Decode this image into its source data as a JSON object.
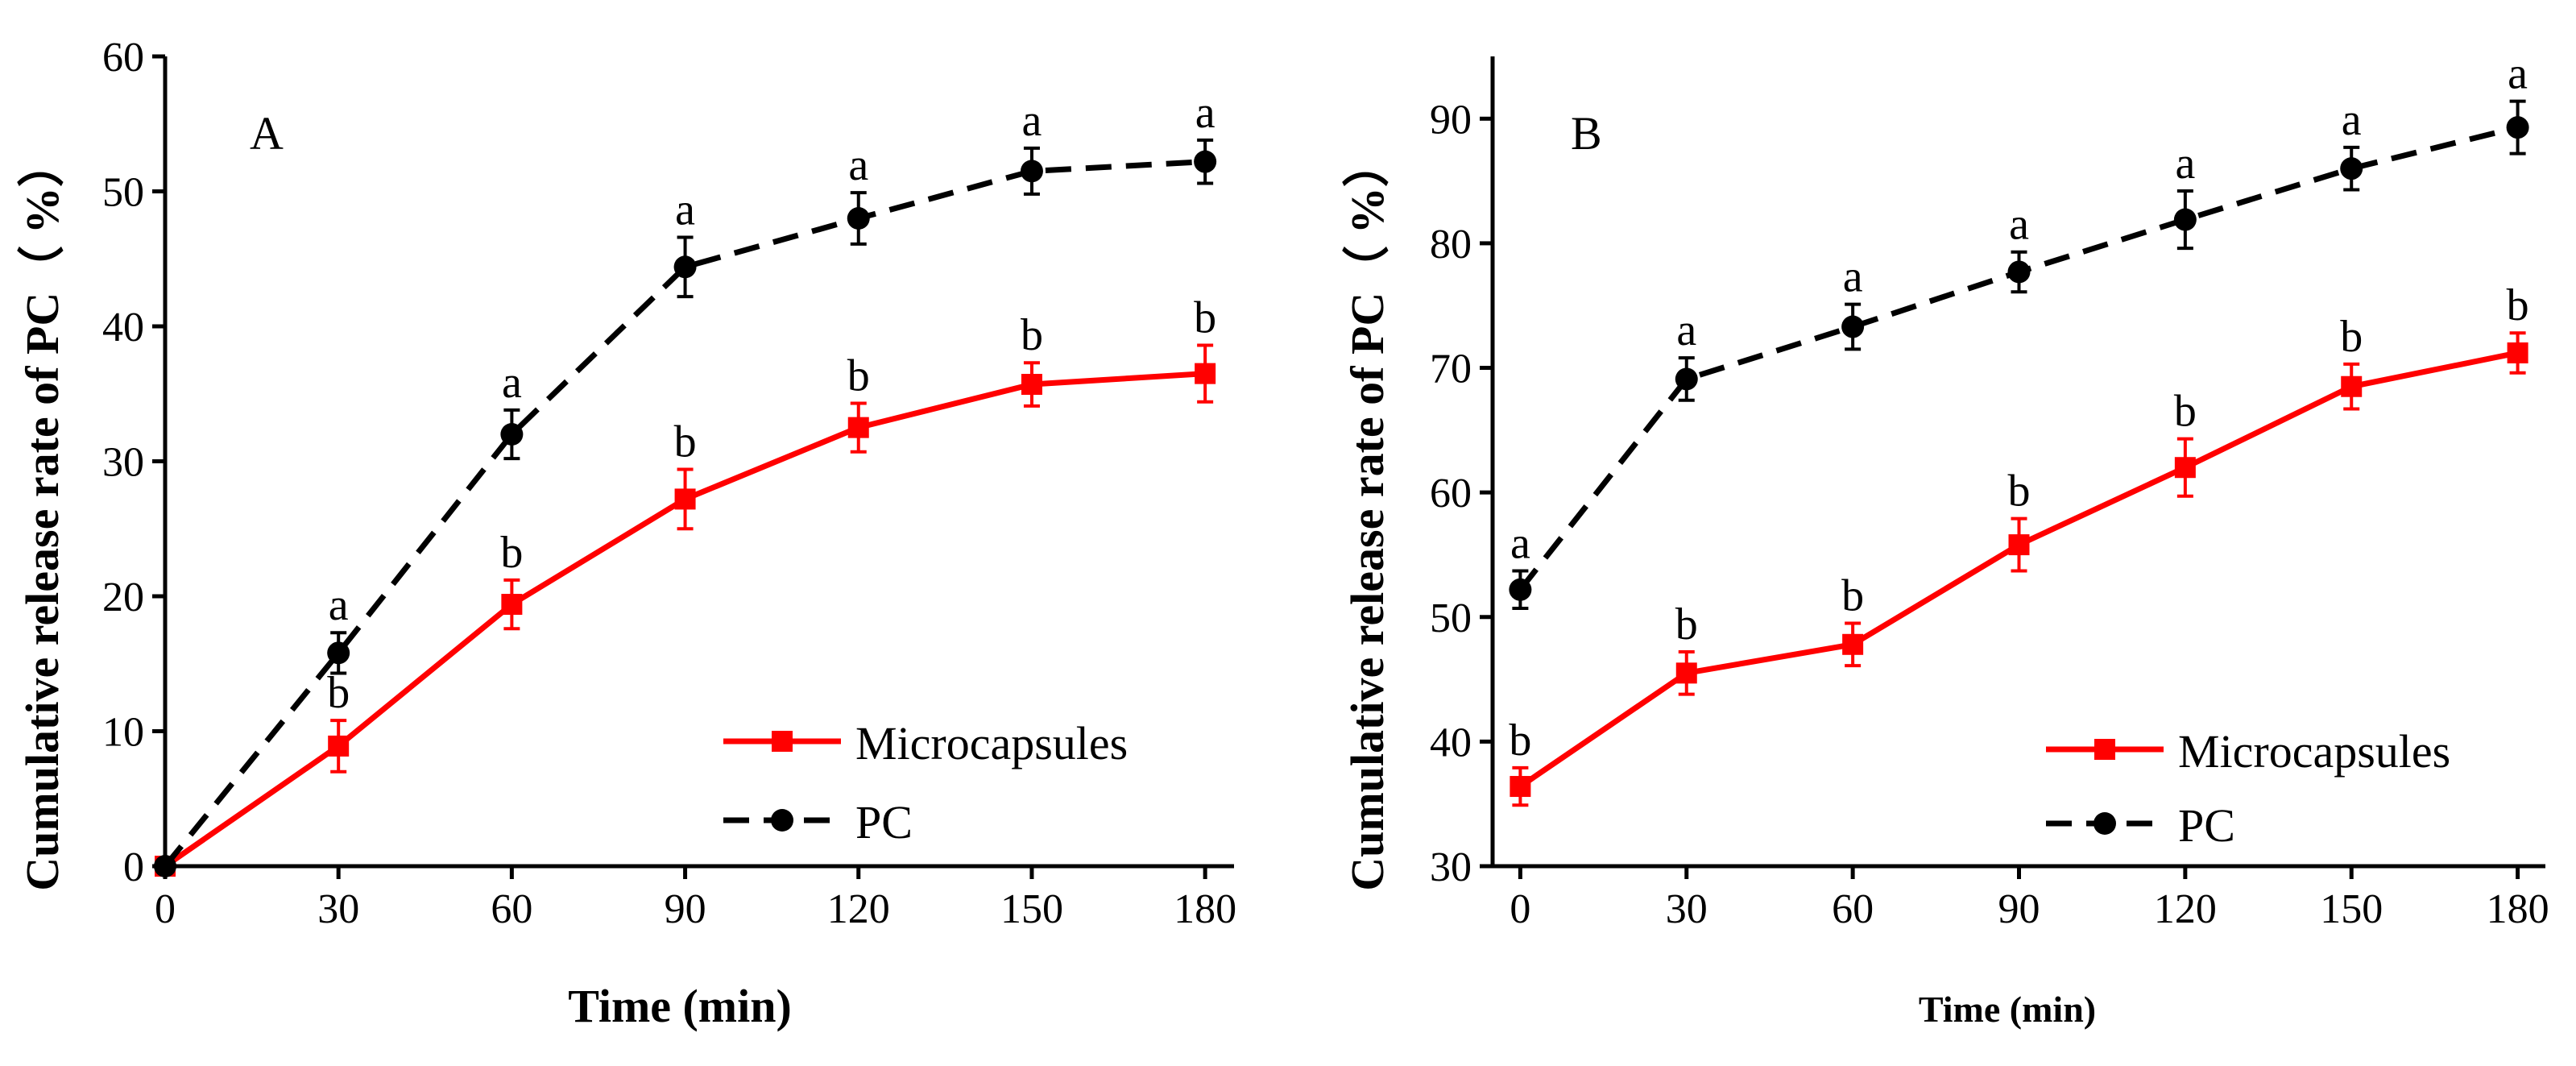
{
  "chart_data": [
    {
      "type": "line",
      "panel_label": "A",
      "xlabel": "Time (min)",
      "ylabel": "Cumulative release rate of PC（ %）",
      "xlim": [
        0,
        185
      ],
      "ylim": [
        0,
        60
      ],
      "xticks": [
        0,
        30,
        60,
        90,
        120,
        150,
        180
      ],
      "yticks": [
        0,
        10,
        20,
        30,
        40,
        50,
        60
      ],
      "legend_position": "bottom-right",
      "series": [
        {
          "name": "Microcapsules",
          "color": "#ff0000",
          "line_style": "solid",
          "marker": "square",
          "x": [
            0,
            30,
            60,
            90,
            120,
            150,
            180
          ],
          "y": [
            0,
            8.9,
            19.4,
            27.2,
            32.5,
            35.7,
            36.5
          ],
          "err": [
            0,
            1.9,
            1.8,
            2.2,
            1.8,
            1.6,
            2.1
          ],
          "letters": [
            "",
            "b",
            "b",
            "b",
            "b",
            "b",
            "b"
          ]
        },
        {
          "name": "PC",
          "color": "#000000",
          "line_style": "dashed",
          "marker": "circle",
          "x": [
            0,
            30,
            60,
            90,
            120,
            150,
            180
          ],
          "y": [
            0,
            15.8,
            32.0,
            44.4,
            48.0,
            51.5,
            52.2
          ],
          "err": [
            0,
            1.5,
            1.8,
            2.2,
            1.9,
            1.7,
            1.6
          ],
          "letters": [
            "",
            "a",
            "a",
            "a",
            "a",
            "a",
            "a"
          ]
        }
      ]
    },
    {
      "type": "line",
      "panel_label": "B",
      "xlabel": "Time (min)",
      "ylabel": "Cumulative release rate of PC（ %）",
      "xlim": [
        -5,
        185
      ],
      "ylim": [
        30,
        95
      ],
      "xticks": [
        0,
        30,
        60,
        90,
        120,
        150,
        180
      ],
      "yticks": [
        30,
        40,
        50,
        60,
        70,
        80,
        90
      ],
      "legend_position": "bottom-right",
      "series": [
        {
          "name": "Microcapsules",
          "color": "#ff0000",
          "line_style": "solid",
          "marker": "square",
          "x": [
            0,
            30,
            60,
            90,
            120,
            150,
            180
          ],
          "y": [
            36.4,
            45.5,
            47.8,
            55.8,
            62.0,
            68.5,
            71.2
          ],
          "err": [
            1.5,
            1.7,
            1.7,
            2.1,
            2.3,
            1.8,
            1.6
          ],
          "letters": [
            "b",
            "b",
            "b",
            "b",
            "b",
            "b",
            "b"
          ]
        },
        {
          "name": "PC",
          "color": "#000000",
          "line_style": "dashed",
          "marker": "circle",
          "x": [
            0,
            30,
            60,
            90,
            120,
            150,
            180
          ],
          "y": [
            52.2,
            69.1,
            73.3,
            77.7,
            81.9,
            86.0,
            89.3
          ],
          "err": [
            1.5,
            1.7,
            1.8,
            1.6,
            2.3,
            1.7,
            2.1
          ],
          "letters": [
            "a",
            "a",
            "a",
            "a",
            "a",
            "a",
            "a"
          ]
        }
      ]
    }
  ]
}
